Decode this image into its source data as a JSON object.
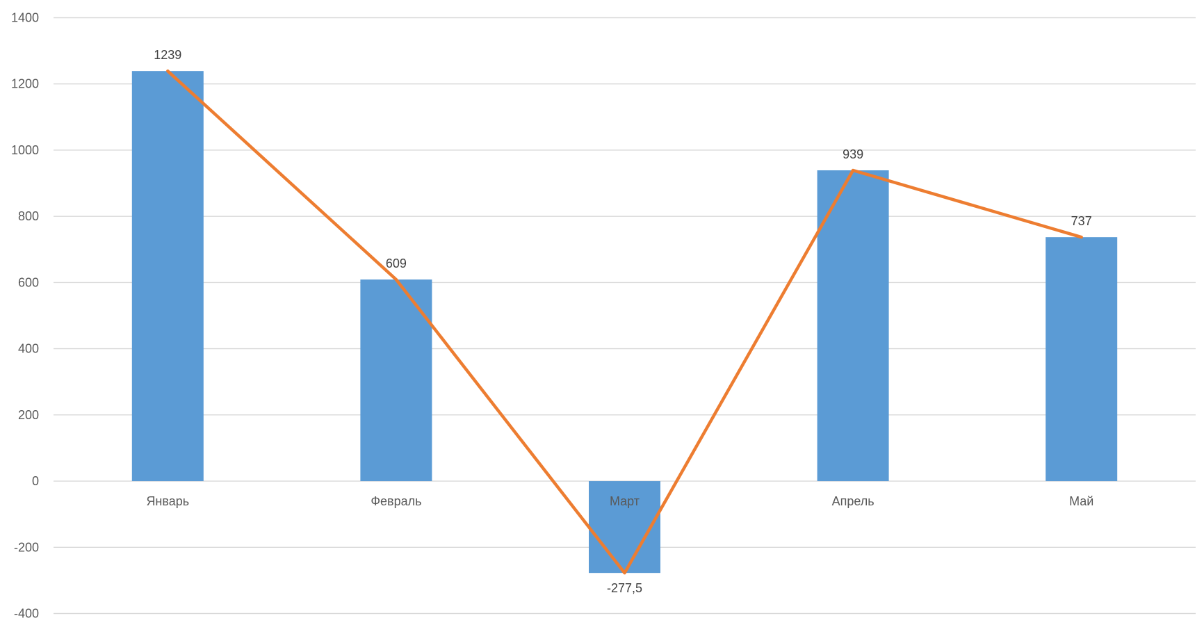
{
  "chart": {
    "background": "#FFFFFF",
    "bar_color": "#5B9BD5",
    "line_color": "#ED7D31",
    "gridline_color": "#D9D9D9",
    "axis_text_color": "#595959",
    "data_label_color": "#404040"
  },
  "chart_data": {
    "type": "bar",
    "subtype": "combo-bar-line",
    "title": "",
    "xlabel": "",
    "ylabel": "",
    "categories": [
      "Январь",
      "Февраль",
      "Март",
      "Апрель",
      "Май"
    ],
    "series": [
      {
        "name": "bars",
        "type": "bar",
        "values": [
          1239,
          609,
          -277.5,
          939,
          737
        ]
      },
      {
        "name": "line",
        "type": "line",
        "values": [
          1239,
          609,
          -277.5,
          939,
          737
        ]
      }
    ],
    "data_labels": [
      "1239",
      "609",
      "-277,5",
      "939",
      "737"
    ],
    "y_tick_labels": [
      "1400",
      "1200",
      "1000",
      "800",
      "600",
      "400",
      "200",
      "0",
      "-200",
      "-400"
    ],
    "ylim": [
      -400,
      1400
    ],
    "grid": true,
    "legend": false
  }
}
